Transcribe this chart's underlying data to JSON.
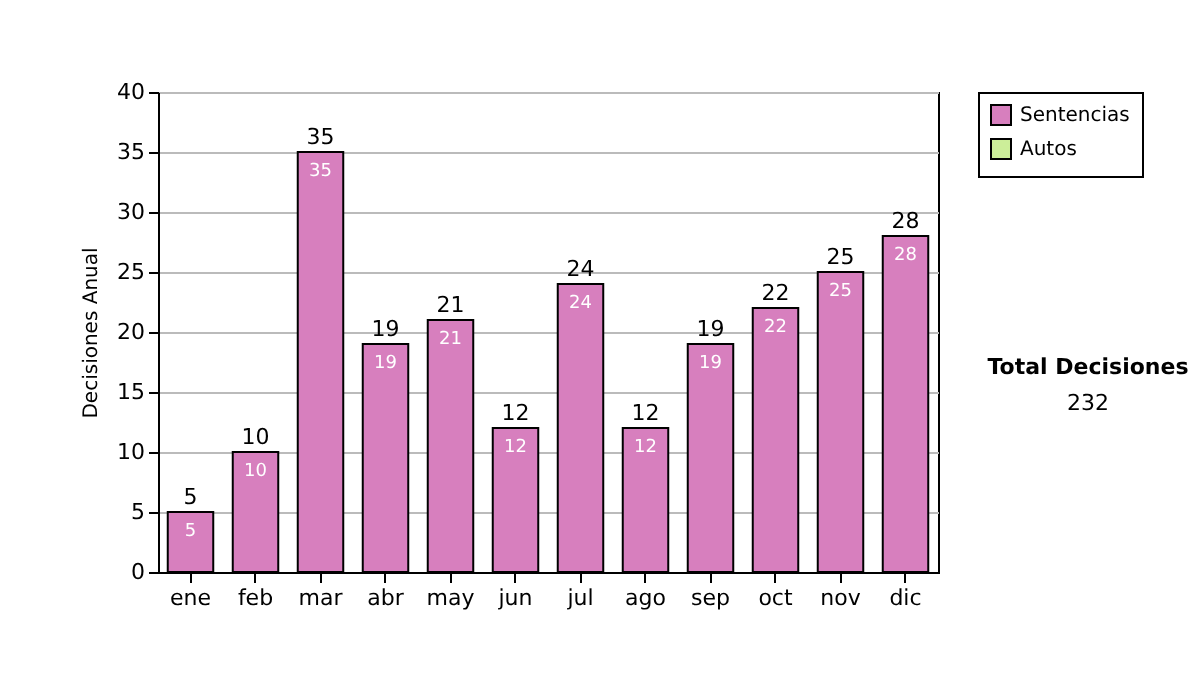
{
  "chart_data": {
    "type": "bar",
    "stacked": true,
    "ylabel": "Decisiones Anual",
    "categories": [
      "ene",
      "feb",
      "mar",
      "abr",
      "may",
      "jun",
      "jul",
      "ago",
      "sep",
      "oct",
      "nov",
      "dic"
    ],
    "series": [
      {
        "name": "Sentencias",
        "color": "#d77fbe",
        "values": [
          5,
          10,
          35,
          19,
          21,
          12,
          24,
          12,
          19,
          22,
          25,
          28
        ],
        "value_labels": [
          "5",
          "10",
          "35",
          "19",
          "21",
          "12",
          "24",
          "12",
          "19",
          "22",
          "25",
          "28"
        ]
      },
      {
        "name": "Autos",
        "color": "#ccee99",
        "values": [
          0,
          0,
          0,
          0,
          0,
          0,
          0,
          0,
          0,
          0,
          0,
          0
        ]
      }
    ],
    "totals": [
      "5",
      "10",
      "35",
      "19",
      "21",
      "12",
      "24",
      "12",
      "19",
      "22",
      "25",
      "28"
    ],
    "ylim": [
      0,
      40
    ],
    "yticks": [
      0,
      5,
      10,
      15,
      20,
      25,
      30,
      35,
      40
    ],
    "grid": "y",
    "legend": "right",
    "annotations": [
      "Total Decisiones",
      "232"
    ]
  }
}
